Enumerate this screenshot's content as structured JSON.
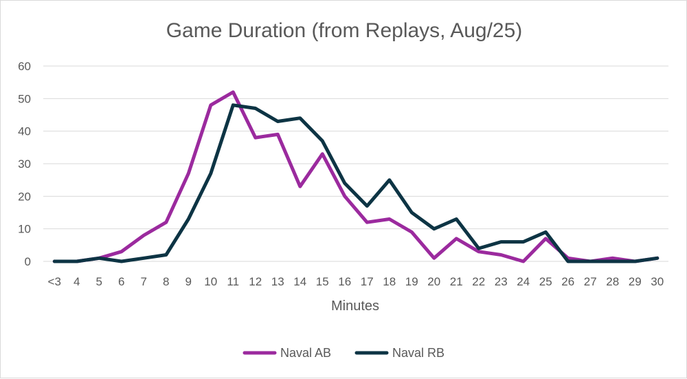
{
  "chart_data": {
    "type": "line",
    "title": "Game Duration (from Replays, Aug/25)",
    "xlabel": "Minutes",
    "ylabel": "",
    "ylim": [
      0,
      60
    ],
    "yticks": [
      0,
      10,
      20,
      30,
      40,
      50,
      60
    ],
    "grid": true,
    "legend_position": "bottom",
    "categories": [
      "<3",
      "4",
      "5",
      "6",
      "7",
      "8",
      "9",
      "10",
      "11",
      "12",
      "13",
      "14",
      "15",
      "16",
      "17",
      "18",
      "19",
      "20",
      "21",
      "22",
      "23",
      "24",
      "25",
      "26",
      "27",
      "28",
      "29",
      "30"
    ],
    "series": [
      {
        "name": "Naval AB",
        "color": "#9b2a9e",
        "values": [
          0,
          0,
          1,
          3,
          8,
          12,
          27,
          48,
          52,
          38,
          39,
          23,
          33,
          20,
          12,
          13,
          9,
          1,
          7,
          3,
          2,
          0,
          7,
          1,
          0,
          1,
          0,
          1
        ]
      },
      {
        "name": "Naval RB",
        "color": "#0d3444",
        "values": [
          0,
          0,
          1,
          0,
          1,
          2,
          13,
          27,
          48,
          47,
          43,
          44,
          37,
          24,
          17,
          25,
          15,
          10,
          13,
          4,
          6,
          6,
          9,
          0,
          0,
          0,
          0,
          1
        ]
      }
    ]
  }
}
